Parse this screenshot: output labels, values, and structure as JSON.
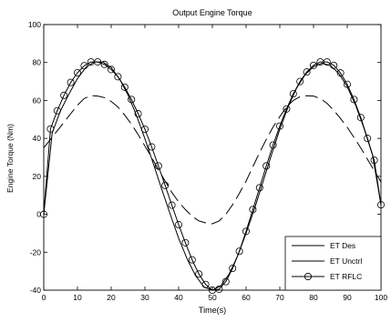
{
  "chart_data": {
    "type": "line",
    "title": "Output Engine Torque",
    "xlabel": "Time(s)",
    "ylabel": "Engine Torque (Nm)",
    "xlim": [
      0,
      100
    ],
    "ylim": [
      -40,
      100
    ],
    "grid": false,
    "legend_position": "bottom-right",
    "x_ticks": [
      "0",
      "10",
      "20",
      "30",
      "40",
      "50",
      "60",
      "70",
      "80",
      "90",
      "100"
    ],
    "y_ticks": [
      "-40",
      "-20",
      "0",
      "20",
      "40",
      "60",
      "80",
      "100"
    ],
    "x_tick_values": [
      0,
      10,
      20,
      30,
      40,
      50,
      60,
      70,
      80,
      90,
      100
    ],
    "y_tick_values": [
      -40,
      -20,
      0,
      20,
      40,
      60,
      80,
      100
    ],
    "series": [
      {
        "name": "ET Des",
        "style": "solid",
        "marker": "none",
        "color": "#000000",
        "x": [
          0,
          2.5,
          5,
          7.5,
          10,
          12.5,
          15,
          17.5,
          20,
          22.5,
          25,
          27.5,
          30,
          32.5,
          35,
          37.5,
          40,
          42.5,
          45,
          47.5,
          50,
          52.5,
          55,
          57.5,
          60,
          62.5,
          65,
          67.5,
          70,
          72.5,
          75,
          77.5,
          80,
          82.5,
          85,
          87.5,
          90,
          92.5,
          95,
          97.5,
          100
        ],
        "y": [
          0,
          43,
          54.7,
          63.5,
          71.5,
          77.5,
          80.3,
          80.3,
          77.3,
          71.3,
          62.8,
          52.1,
          39.8,
          26.6,
          13.1,
          0,
          -12.6,
          -23.5,
          -32.3,
          -38.3,
          -40,
          -37.7,
          -31.4,
          -21.9,
          -10,
          3,
          17,
          31.3,
          44.8,
          56.8,
          66.6,
          73.6,
          77.8,
          79.6,
          78.4,
          74.2,
          67.2,
          57.4,
          45.2,
          31.1,
          5
        ]
      },
      {
        "name": "ET Unctrl",
        "style": "dashed",
        "marker": "none",
        "color": "#000000",
        "x": [
          0,
          2,
          4,
          6,
          8,
          10,
          12,
          14,
          16,
          18,
          20,
          22,
          24,
          26,
          28,
          30,
          32,
          34,
          36,
          38,
          40,
          42,
          44,
          46,
          48,
          50,
          52,
          54,
          56,
          58,
          60,
          62,
          64,
          66,
          68,
          70,
          72,
          74,
          76,
          78,
          80,
          82,
          84,
          86,
          88,
          90,
          92,
          94,
          96,
          98,
          100
        ],
        "y": [
          35,
          39.5,
          44,
          48.5,
          53,
          57.5,
          61,
          62.5,
          62.3,
          61.5,
          59.5,
          56.5,
          52.3,
          47.5,
          42,
          36,
          30,
          23.5,
          17.5,
          11.5,
          6.5,
          2.5,
          -1,
          -3.5,
          -4.5,
          -5,
          -3.5,
          0,
          5,
          11,
          17.5,
          25,
          32.5,
          39.5,
          46,
          51.5,
          56.5,
          60,
          62,
          62.5,
          62.3,
          61,
          58.5,
          54.8,
          50.5,
          45.8,
          40.5,
          35,
          29,
          23,
          17
        ]
      },
      {
        "name": "ET RFLC",
        "style": "solid",
        "marker": "circle",
        "color": "#000000",
        "x": [
          0,
          2,
          4,
          6,
          8,
          10,
          12,
          14,
          16,
          18,
          20,
          22,
          24,
          26,
          28,
          30,
          32,
          34,
          36,
          38,
          40,
          42,
          44,
          46,
          48,
          50,
          52,
          54,
          56,
          58,
          60,
          62,
          64,
          66,
          68,
          70,
          72,
          74,
          76,
          78,
          80,
          82,
          84,
          86,
          88,
          90,
          92,
          94,
          96,
          98,
          100
        ],
        "y": [
          0,
          45,
          54.6,
          62.7,
          69.5,
          74.6,
          78.3,
          80.3,
          80.3,
          79,
          76.3,
          72.5,
          67,
          60.5,
          53,
          44.8,
          35.5,
          25.5,
          15.2,
          4.8,
          -5.5,
          -15,
          -24,
          -31.5,
          -37,
          -40,
          -39.5,
          -35.5,
          -28.5,
          -19.5,
          -9,
          2.5,
          14,
          25.5,
          36.5,
          46.5,
          55.5,
          63.5,
          70,
          75,
          78.5,
          80.3,
          80.3,
          78.5,
          74.5,
          68.5,
          60.5,
          51,
          40,
          28.5,
          5
        ]
      }
    ]
  }
}
